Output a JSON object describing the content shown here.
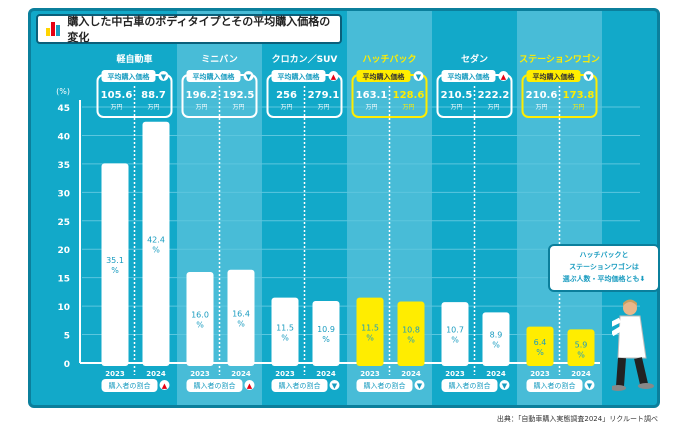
{
  "title": "購入した中古車のボディタイプとその平均購入価格の変化",
  "colors": {
    "background": "#12a9c9",
    "bar_default": "#ffffff",
    "bar_highlight": "#ffed00",
    "label_default": "#1a9cc0",
    "shaded_column": "#48bcd7",
    "up_icon": "#e60012"
  },
  "price_label": "平均購入価格",
  "share_label": "購入者の割合",
  "unit": "万円",
  "source": "出典：「自動車購入実態調査2024」リクルート調べ",
  "callout": [
    "ハッチバックと",
    "ステーションワゴンは",
    "選ぶ人数・平均価格とも⬇"
  ],
  "chart_data": {
    "type": "bar",
    "ylabel": "(%)",
    "ylim": [
      0,
      45
    ],
    "yticks": [
      0,
      5,
      10,
      15,
      20,
      25,
      30,
      35,
      40,
      45
    ],
    "grid": true,
    "years": [
      "2023",
      "2024"
    ],
    "categories": [
      {
        "name": "軽自動車",
        "share": [
          35.1,
          42.4
        ],
        "price": [
          "105.6",
          "88.7"
        ],
        "share_trend": "up",
        "price_trend": "down",
        "highlight": false,
        "shaded": false
      },
      {
        "name": "ミニバン",
        "share": [
          16.0,
          16.4
        ],
        "price": [
          "196.2",
          "192.5"
        ],
        "share_trend": "up",
        "price_trend": "down",
        "highlight": false,
        "shaded": true
      },
      {
        "name": "クロカン／SUV",
        "share": [
          11.5,
          10.9
        ],
        "price": [
          "256",
          "279.1"
        ],
        "share_trend": "down",
        "price_trend": "up",
        "highlight": false,
        "shaded": false
      },
      {
        "name": "ハッチバック",
        "share": [
          11.5,
          10.8
        ],
        "price": [
          "163.1",
          "128.6"
        ],
        "share_trend": "down",
        "price_trend": "down",
        "highlight": true,
        "shaded": true
      },
      {
        "name": "セダン",
        "share": [
          10.7,
          8.9
        ],
        "price": [
          "210.5",
          "222.2"
        ],
        "share_trend": "down",
        "price_trend": "up",
        "highlight": false,
        "shaded": false
      },
      {
        "name": "ステーションワゴン",
        "share": [
          6.4,
          5.9
        ],
        "price": [
          "210.6",
          "173.8"
        ],
        "share_trend": "down",
        "price_trend": "down",
        "highlight": true,
        "shaded": true
      }
    ]
  }
}
